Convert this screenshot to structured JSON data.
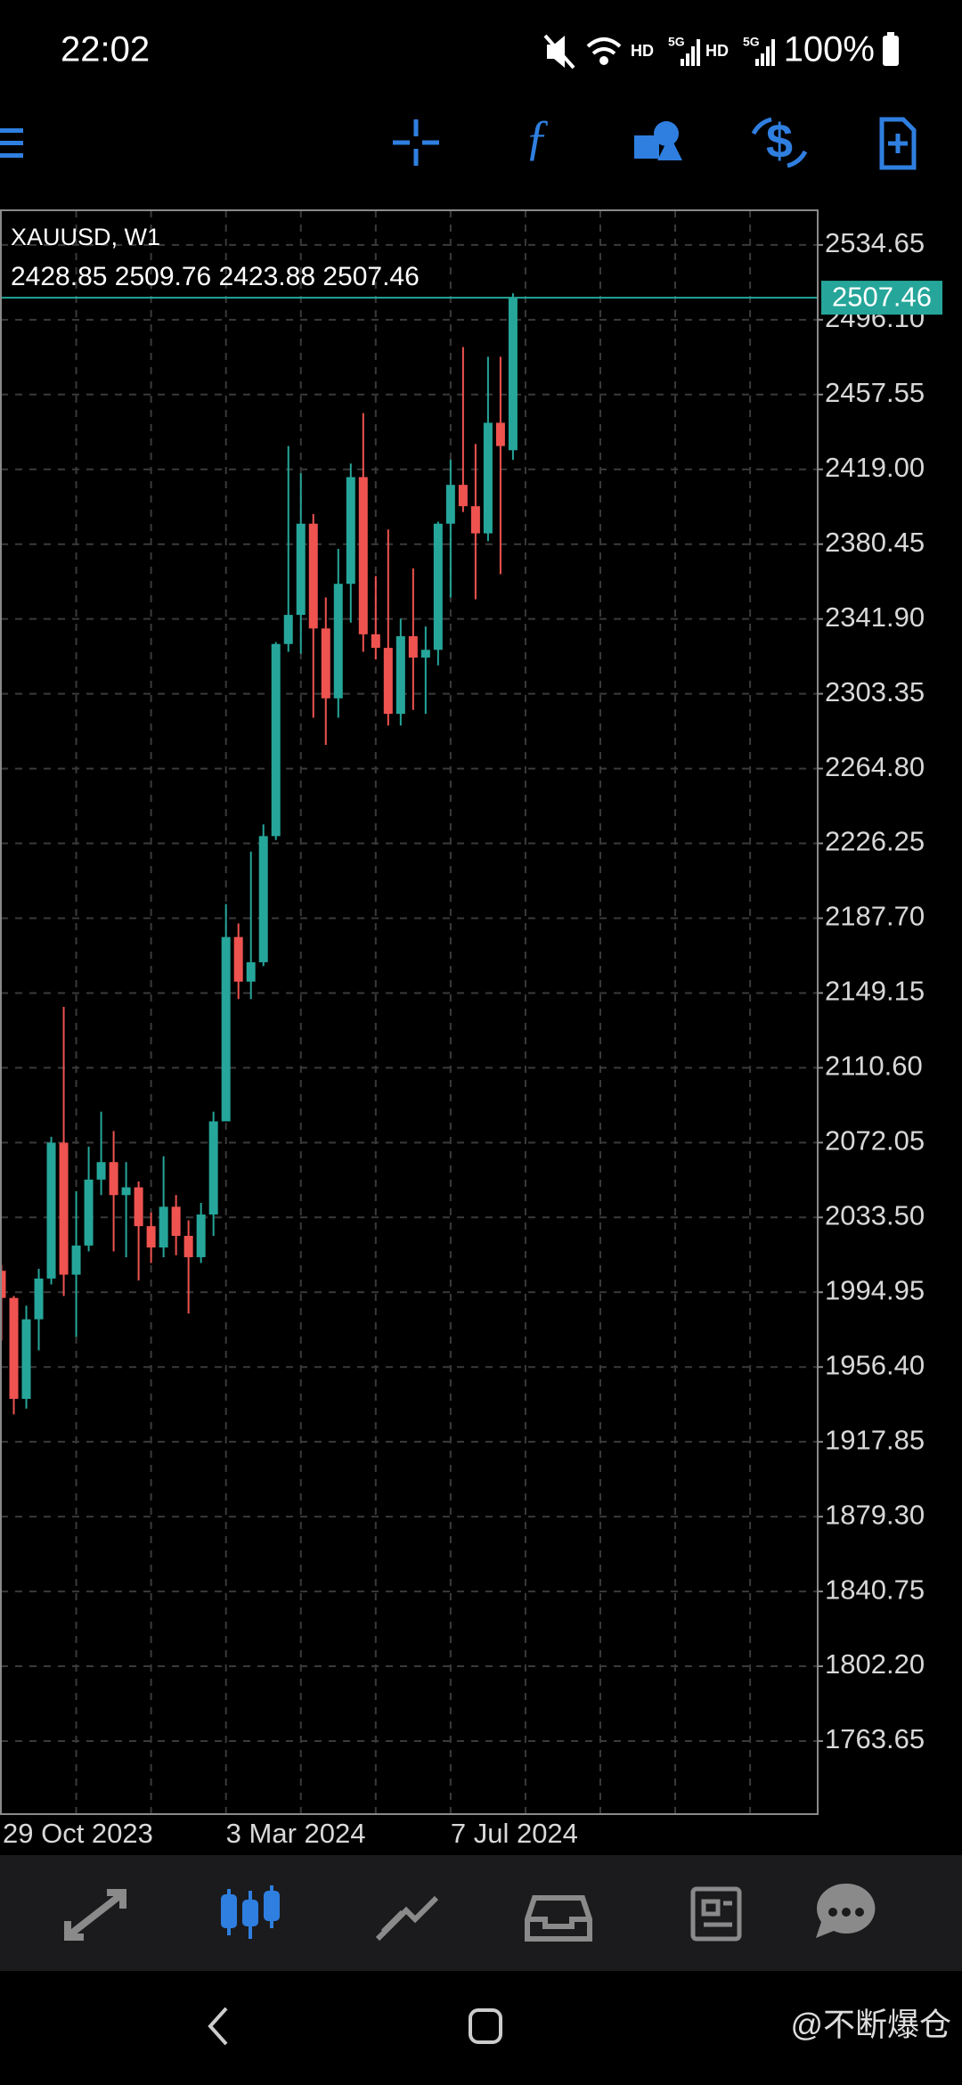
{
  "status_bar": {
    "time": "22:02",
    "network": [
      "HD",
      "5G",
      "HD",
      "5G"
    ],
    "battery": "100%"
  },
  "chart_header": {
    "symbol": "XAUUSD, W1",
    "ohlc": "2428.85 2509.76 2423.88 2507.46"
  },
  "chart_data": {
    "type": "candlestick",
    "categories": [
      "29 Oct 2023",
      null,
      null,
      null,
      null,
      null,
      null,
      null,
      null,
      null,
      null,
      null,
      null,
      null,
      null,
      null,
      null,
      null,
      "3 Mar 2024",
      null,
      null,
      null,
      null,
      null,
      null,
      null,
      null,
      null,
      null,
      null,
      null,
      null,
      null,
      null,
      null,
      null,
      "7 Jul 2024",
      null,
      null,
      null,
      null,
      null
    ],
    "open": [
      2006,
      1992,
      1940,
      1981,
      2002,
      2072,
      2004,
      2019,
      2053,
      2062,
      2045,
      2049,
      2029,
      2018,
      2039,
      2024,
      2013,
      2035,
      2083,
      2178,
      2155,
      2165,
      2230,
      2329,
      2344,
      2391,
      2337,
      2301,
      2360,
      2415,
      2334,
      2327,
      2293,
      2333,
      2322,
      2326,
      2391,
      2411,
      2400,
      2386,
      2443,
      2428.85
    ],
    "high": [
      2009,
      1993,
      1988,
      2007,
      2075,
      2142,
      2047,
      2070,
      2088,
      2078,
      2062,
      2052,
      2036,
      2065,
      2045,
      2032,
      2041,
      2088,
      2195,
      2185,
      2222,
      2236,
      2330,
      2431,
      2417,
      2396,
      2353,
      2378,
      2422,
      2448,
      2364,
      2388,
      2342,
      2368,
      2338,
      2392,
      2424,
      2482,
      2432,
      2477,
      2477,
      2509.76
    ],
    "low": [
      1970,
      1932,
      1935,
      1965,
      1999,
      1993,
      1972,
      2016,
      2045,
      2016,
      2013,
      2001,
      2010,
      2013,
      2014,
      1984,
      2010,
      2024,
      2083,
      2146,
      2146,
      2163,
      2228,
      2325,
      2324,
      2291,
      2277,
      2291,
      2340,
      2325,
      2321,
      2287,
      2287,
      2295,
      2293,
      2318,
      2353,
      2397,
      2352,
      2382,
      2365,
      2423.88
    ],
    "close": [
      1992,
      1940,
      1981,
      2002,
      2072,
      2004,
      2019,
      2053,
      2062,
      2045,
      2049,
      2029,
      2018,
      2039,
      2024,
      2013,
      2035,
      2083,
      2178,
      2155,
      2165,
      2230,
      2329,
      2344,
      2391,
      2337,
      2301,
      2360,
      2415,
      2334,
      2327,
      2293,
      2333,
      2322,
      2326,
      2391,
      2411,
      2400,
      2386,
      2443,
      2431,
      2507.46
    ],
    "up_color": "#26a69a",
    "down_color": "#ef5350",
    "ylim": [
      1726.0,
      2552.5
    ],
    "yticks": [
      2534.65,
      {
        "value": 2496.1,
        "label": "2496.10"
      },
      2457.55,
      {
        "value": 2419.0,
        "label": "2419.00"
      },
      2380.45,
      {
        "value": 2341.9,
        "label": "2341.90"
      },
      2303.35,
      {
        "value": 2264.8,
        "label": "2264.80"
      },
      2226.25,
      {
        "value": 2187.7,
        "label": "2187.70"
      },
      2149.15,
      {
        "value": 2110.6,
        "label": "2110.60"
      },
      2072.05,
      {
        "value": 2033.5,
        "label": "2033.50"
      },
      1994.95,
      {
        "value": 1956.4,
        "label": "1956.40"
      },
      1917.85,
      {
        "value": 1879.3,
        "label": "1879.30"
      },
      1840.75,
      {
        "value": 1802.2,
        "label": "1802.20"
      },
      1763.65
    ],
    "grid": true,
    "current_price": 2507.46
  },
  "watermark": "@不断爆仓"
}
